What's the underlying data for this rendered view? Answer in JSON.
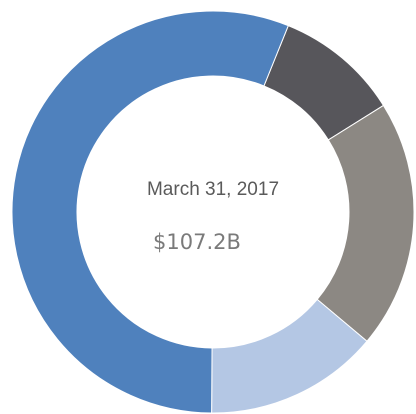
{
  "chart_data": {
    "type": "donut",
    "title": "March 31, 2017",
    "subtitle": "$107.2B",
    "values": [
      10,
      20,
      14,
      56
    ],
    "colors": [
      "#57565b",
      "#8c8883",
      "#b4c7e4",
      "#4f81bd"
    ]
  }
}
